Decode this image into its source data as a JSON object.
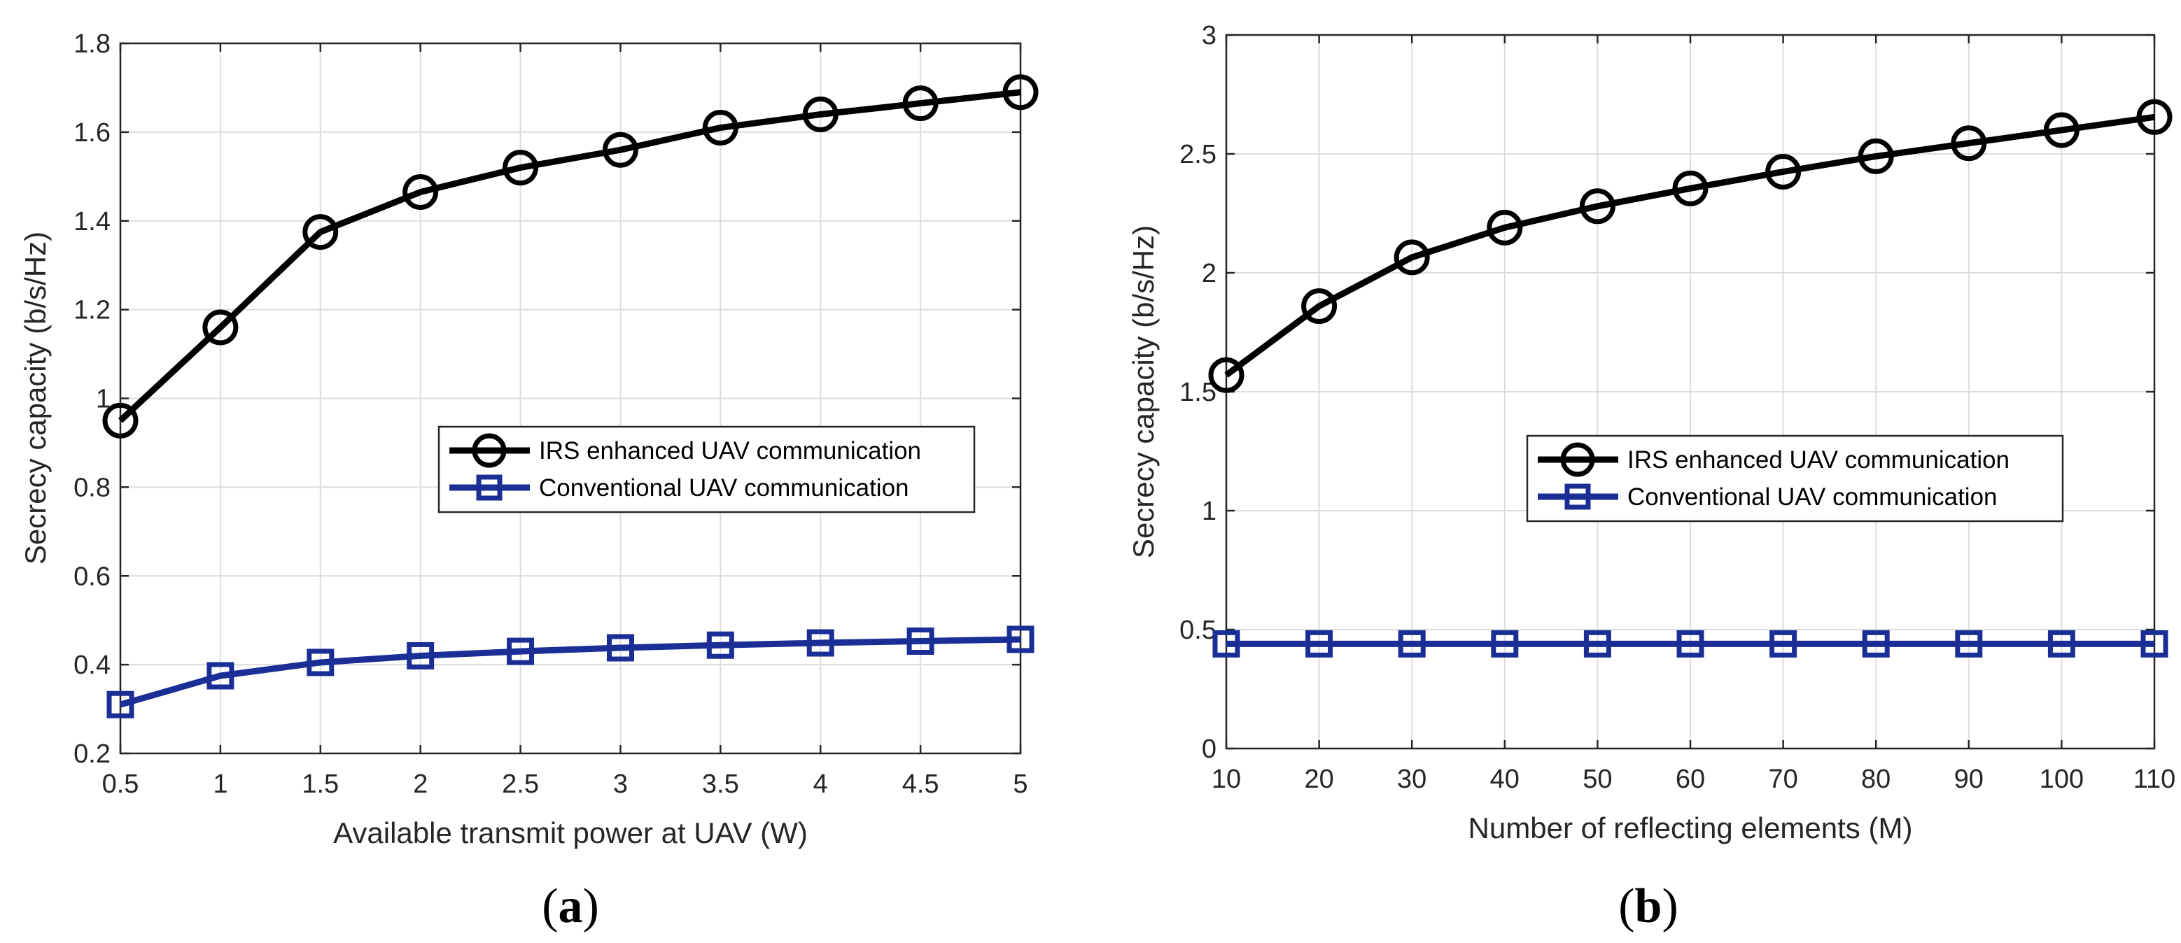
{
  "colors": {
    "irs": "#000000",
    "conventional": "#1a2e96"
  },
  "chart_data": [
    {
      "type": "line",
      "panel": "a",
      "panel_label": "a",
      "title": "",
      "xlabel": "Available transmit power at UAV (W)",
      "ylabel": "Secrecy capacity (b/s/Hz)",
      "xlim": [
        0.5,
        5
      ],
      "ylim": [
        0.2,
        1.8
      ],
      "xticks": [
        0.5,
        1,
        1.5,
        2,
        2.5,
        3,
        3.5,
        4,
        4.5,
        5
      ],
      "xtick_labels": [
        "0.5",
        "1",
        "1.5",
        "2",
        "2.5",
        "3",
        "3.5",
        "4",
        "4.5",
        "5"
      ],
      "yticks": [
        0.2,
        0.4,
        0.6,
        0.8,
        1.0,
        1.2,
        1.4,
        1.6,
        1.8
      ],
      "ytick_labels": [
        "0.2",
        "0.4",
        "0.6",
        "0.8",
        "1",
        "1.2",
        "1.4",
        "1.6",
        "1.8"
      ],
      "grid": true,
      "legend_position": "center-right",
      "x": [
        0.5,
        1,
        1.5,
        2,
        2.5,
        3,
        3.5,
        4,
        4.5,
        5
      ],
      "series": [
        {
          "name": "IRS enhanced UAV communication",
          "marker": "circle",
          "values": [
            0.95,
            1.16,
            1.375,
            1.465,
            1.52,
            1.56,
            1.61,
            1.64,
            1.665,
            1.69
          ]
        },
        {
          "name": "Conventional UAV communication",
          "marker": "square",
          "values": [
            0.31,
            0.375,
            0.405,
            0.42,
            0.43,
            0.438,
            0.444,
            0.449,
            0.453,
            0.457
          ]
        }
      ]
    },
    {
      "type": "line",
      "panel": "b",
      "panel_label": "b",
      "title": "",
      "xlabel": "Number of reflecting elements (M)",
      "ylabel": "Secrecy capacity (b/s/Hz)",
      "xlim": [
        10,
        110
      ],
      "ylim": [
        0,
        3
      ],
      "xticks": [
        10,
        20,
        30,
        40,
        50,
        60,
        70,
        80,
        90,
        100,
        110
      ],
      "xtick_labels": [
        "10",
        "20",
        "30",
        "40",
        "50",
        "60",
        "70",
        "80",
        "90",
        "100",
        "110"
      ],
      "yticks": [
        0,
        0.5,
        1,
        1.5,
        2,
        2.5,
        3
      ],
      "ytick_labels": [
        "0",
        "0.5",
        "1",
        "1.5",
        "2",
        "2.5",
        "3"
      ],
      "grid": true,
      "legend_position": "center-right",
      "x": [
        10,
        20,
        30,
        40,
        50,
        60,
        70,
        80,
        90,
        100,
        110
      ],
      "series": [
        {
          "name": "IRS enhanced UAV communication",
          "marker": "circle",
          "values": [
            1.57,
            1.86,
            2.065,
            2.19,
            2.28,
            2.355,
            2.425,
            2.49,
            2.545,
            2.6,
            2.655
          ]
        },
        {
          "name": "Conventional UAV communication",
          "marker": "square",
          "values": [
            0.44,
            0.44,
            0.44,
            0.44,
            0.44,
            0.44,
            0.44,
            0.44,
            0.44,
            0.44,
            0.44
          ]
        }
      ]
    }
  ]
}
